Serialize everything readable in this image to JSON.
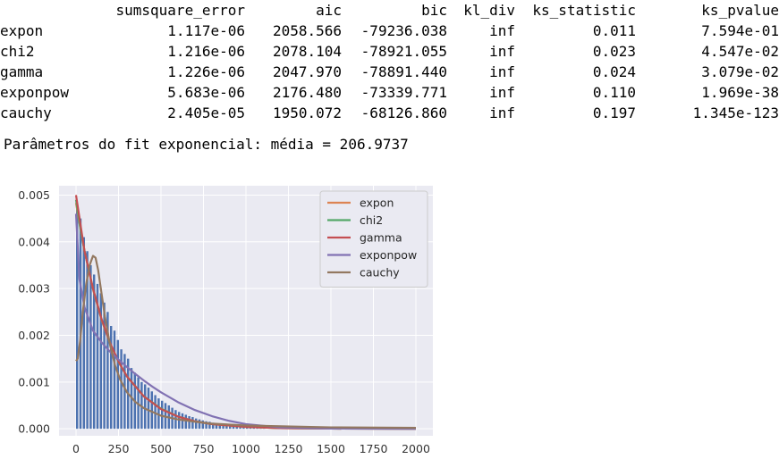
{
  "table": {
    "index_header": "",
    "columns": [
      "sumsquare_error",
      "aic",
      "bic",
      "kl_div",
      "ks_statistic",
      "ks_pvalue"
    ],
    "rows": [
      {
        "name": "expon",
        "cells": [
          "1.117e-06",
          "2058.566",
          "-79236.038",
          "inf",
          "0.011",
          "7.594e-01"
        ]
      },
      {
        "name": "chi2",
        "cells": [
          "1.216e-06",
          "2078.104",
          "-78921.055",
          "inf",
          "0.023",
          "4.547e-02"
        ]
      },
      {
        "name": "gamma",
        "cells": [
          "1.226e-06",
          "2047.970",
          "-78891.440",
          "inf",
          "0.024",
          "3.079e-02"
        ]
      },
      {
        "name": "exponpow",
        "cells": [
          "5.683e-06",
          "2176.480",
          "-73339.771",
          "inf",
          "0.110",
          "1.969e-38"
        ]
      },
      {
        "name": "cauchy",
        "cells": [
          "2.405e-05",
          "1950.072",
          "-68126.860",
          "inf",
          "0.197",
          "1.345e-123"
        ]
      }
    ]
  },
  "fit_text": "Parâmetros do fit exponencial: média = 206.9737",
  "chart_data": {
    "type": "line",
    "background": "#eaeaf2",
    "grid": true,
    "legend_position": "upper-right",
    "xlim": [
      -100,
      2100
    ],
    "ylim": [
      -0.00015,
      0.0052
    ],
    "x_ticks": [
      0,
      250,
      500,
      750,
      1000,
      1250,
      1500,
      1750,
      2000
    ],
    "x_tick_labels": [
      "0",
      "250",
      "500",
      "750",
      "1000",
      "1250",
      "1500",
      "1750",
      "2000"
    ],
    "y_ticks": [
      0.0,
      0.001,
      0.002,
      0.003,
      0.004,
      0.005
    ],
    "y_tick_labels": [
      "0.000",
      "0.001",
      "0.002",
      "0.003",
      "0.004",
      "0.005"
    ],
    "histogram": {
      "color": "#4c72b0",
      "bin_width": 20,
      "bins_start": 0,
      "values": [
        0.0048,
        0.0045,
        0.0041,
        0.0038,
        0.0035,
        0.0033,
        0.0031,
        0.0029,
        0.0027,
        0.0025,
        0.0022,
        0.0021,
        0.0019,
        0.0017,
        0.0016,
        0.0015,
        0.0013,
        0.0012,
        0.0011,
        0.001,
        0.00095,
        0.00088,
        0.0008,
        0.00072,
        0.00065,
        0.0006,
        0.00055,
        0.0005,
        0.00045,
        0.0004,
        0.00036,
        0.00033,
        0.0003,
        0.00027,
        0.00025,
        0.00022,
        0.0002,
        0.00018,
        0.00016,
        0.00015,
        0.00013,
        0.00012,
        0.00011,
        0.0001,
        9e-05,
        8e-05,
        7e-05,
        6e-05,
        5e-05,
        4e-05,
        3e-05,
        3e-05,
        2e-05,
        2e-05,
        1e-05,
        1e-05
      ]
    },
    "series": [
      {
        "name": "expon",
        "color": "#dd8452",
        "x": [
          0,
          25,
          50,
          100,
          150,
          200,
          250,
          300,
          400,
          500,
          600,
          700,
          800,
          1000,
          1200,
          1500,
          2000
        ],
        "y": [
          0.00483,
          0.00429,
          0.00381,
          0.00298,
          0.00233,
          0.00183,
          0.00143,
          0.00112,
          0.00069,
          0.00043,
          0.00026,
          0.00016,
          0.0001,
          4e-05,
          1.5e-05,
          4e-06,
          3e-07
        ]
      },
      {
        "name": "chi2",
        "color": "#55a868",
        "x": [
          0,
          25,
          50,
          100,
          150,
          200,
          250,
          300,
          400,
          500,
          600,
          700,
          800,
          1000,
          1200,
          1500,
          2000
        ],
        "y": [
          0.0049,
          0.0043,
          0.0038,
          0.003,
          0.00234,
          0.00183,
          0.00143,
          0.00112,
          0.00069,
          0.00043,
          0.00026,
          0.00016,
          0.0001,
          4e-05,
          1.5e-05,
          4e-06,
          3e-07
        ]
      },
      {
        "name": "gamma",
        "color": "#c44e52",
        "x": [
          0,
          25,
          50,
          100,
          150,
          200,
          250,
          300,
          400,
          500,
          600,
          700,
          800,
          1000,
          1200,
          1500,
          2000
        ],
        "y": [
          0.005,
          0.0044,
          0.0038,
          0.003,
          0.00235,
          0.00184,
          0.00144,
          0.00112,
          0.00069,
          0.00042,
          0.00026,
          0.00016,
          0.0001,
          4e-05,
          1.5e-05,
          4e-06,
          3e-07
        ]
      },
      {
        "name": "exponpow",
        "color": "#8172b3",
        "x": [
          0,
          20,
          50,
          100,
          150,
          200,
          250,
          300,
          350,
          400,
          450,
          500,
          600,
          700,
          800,
          900,
          1000,
          1200,
          1500,
          2000
        ],
        "y": [
          0.0046,
          0.0032,
          0.0026,
          0.0021,
          0.00185,
          0.00165,
          0.00148,
          0.00132,
          0.00117,
          0.00103,
          0.0009,
          0.00078,
          0.00057,
          0.0004,
          0.00027,
          0.00017,
          0.0001,
          3e-05,
          5e-06,
          1e-07
        ]
      },
      {
        "name": "cauchy",
        "color": "#937860",
        "x": [
          0,
          10,
          25,
          40,
          60,
          80,
          100,
          115,
          130,
          150,
          170,
          200,
          230,
          260,
          300,
          350,
          400,
          500,
          600,
          700,
          800,
          1000,
          1500,
          2000
        ],
        "y": [
          0.00145,
          0.0015,
          0.0019,
          0.0025,
          0.0031,
          0.0035,
          0.0037,
          0.00366,
          0.0034,
          0.0029,
          0.0024,
          0.0018,
          0.00135,
          0.00105,
          0.00078,
          0.00057,
          0.00044,
          0.00028,
          0.0002,
          0.00015,
          0.00011,
          7e-05,
          3e-05,
          2e-05
        ]
      }
    ]
  }
}
